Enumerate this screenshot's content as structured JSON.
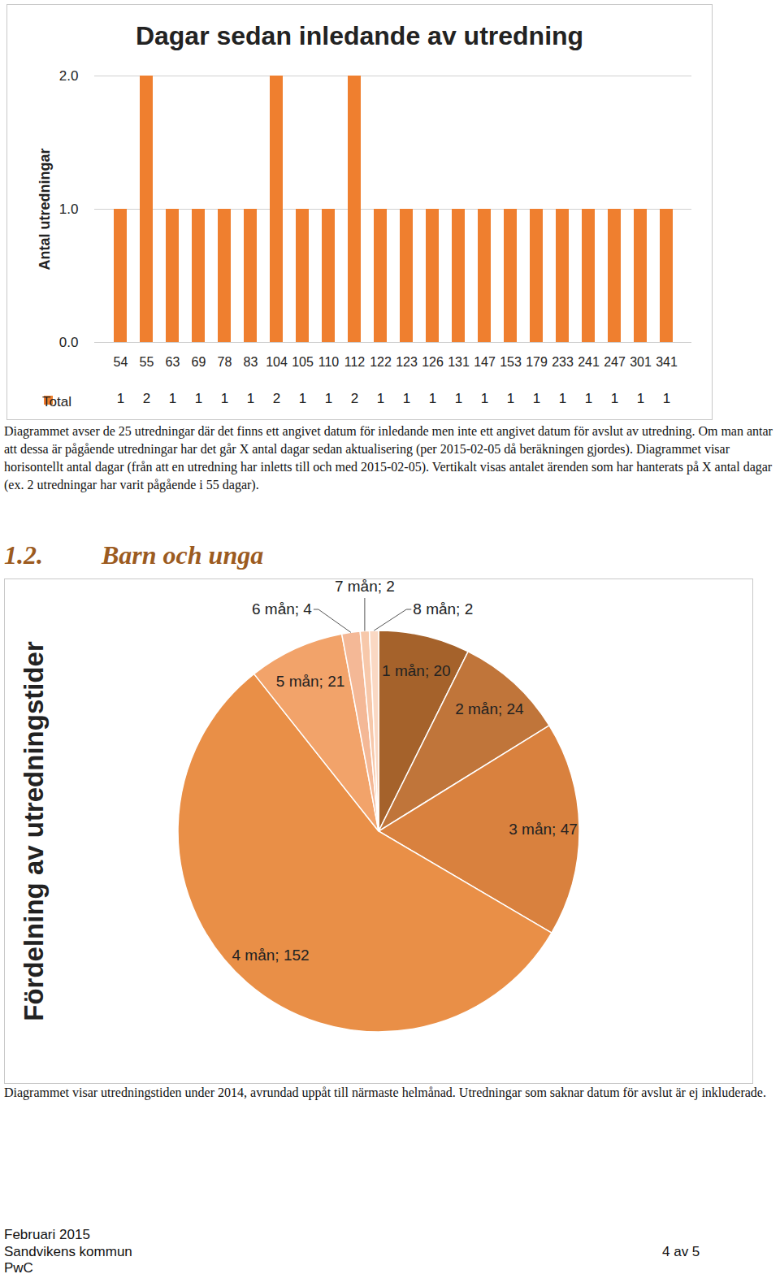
{
  "chart_data": [
    {
      "type": "bar",
      "title": "Dagar sedan inledande av utredning",
      "ylabel": "Antal utredningar",
      "categories": [
        "54",
        "55",
        "63",
        "69",
        "78",
        "83",
        "104",
        "105",
        "110",
        "112",
        "122",
        "123",
        "126",
        "131",
        "147",
        "153",
        "179",
        "233",
        "241",
        "247",
        "301",
        "341"
      ],
      "series": [
        {
          "name": "Total",
          "color": "#ef7f2f",
          "values": [
            1,
            2,
            1,
            1,
            1,
            1,
            2,
            1,
            1,
            2,
            1,
            1,
            1,
            1,
            1,
            1,
            1,
            1,
            1,
            1,
            1,
            1
          ]
        }
      ],
      "ylim": [
        0,
        2
      ],
      "yticks": [
        0,
        1,
        2
      ],
      "grid": true,
      "data_labels": true,
      "legend": "bottom"
    },
    {
      "type": "pie",
      "title": "Fördelning av utredningstider",
      "categories": [
        "1 mån",
        "2 mån",
        "3 mån",
        "4 mån",
        "5 mån",
        "6 mån",
        "7 mån",
        "8 mån"
      ],
      "values": [
        20,
        24,
        47,
        152,
        21,
        4,
        2,
        2
      ],
      "value_labels": [
        "1 mån; 20",
        "2 mån; 24",
        "3 mån; 47",
        "4 mån; 152",
        "5 mån; 21",
        "6 mån; 4",
        "7 mån; 2",
        "8 mån; 2"
      ],
      "colors": [
        "#a5622b",
        "#c0753a",
        "#d9813e",
        "#e98f47",
        "#f2a36a",
        "#f4b896",
        "#f7c8aa",
        "#fad8c3"
      ],
      "data_labels": true
    }
  ],
  "document": {
    "bar_caption": "Diagrammet avser de 25 utredningar där det finns ett angivet datum för inledande men inte ett angivet datum för avslut av utredning. Om man antar att dessa är pågående utredningar har det går X antal dagar sedan aktualisering (per 2015-02-05 då beräkningen gjordes). Diagrammet visar horisontellt antal dagar (från att en utredning har inletts till och med 2015-02-05). Vertikalt visas antalet ärenden som har hanterats på X antal dagar (ex. 2 utredningar har varit pågående i 55 dagar).",
    "section_number": "1.2.",
    "section_title": "Barn och unga",
    "pie_caption": "Diagrammet visar utredningstiden under 2014, avrundad uppåt till närmaste helmånad. Utredningar som saknar datum för avslut är ej inkluderade.",
    "footer": {
      "date": "Februari 2015",
      "organization": "Sandvikens kommun",
      "page": "4 av 5",
      "author": "PwC"
    }
  }
}
